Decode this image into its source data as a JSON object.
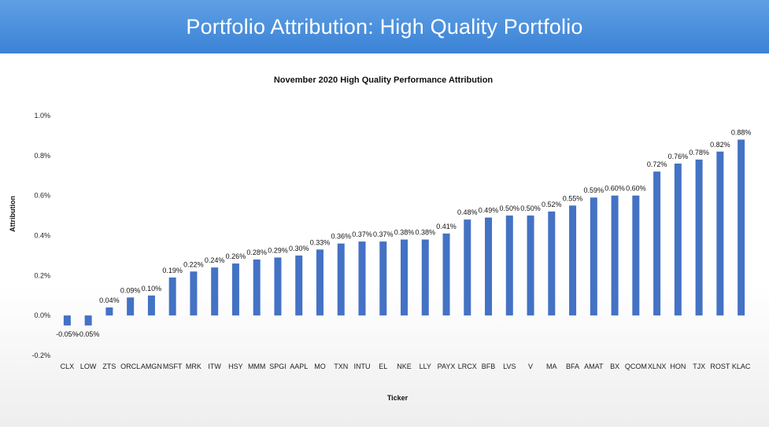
{
  "banner": {
    "title": "Portfolio Attribution: High Quality Portfolio"
  },
  "chart_data": {
    "type": "bar",
    "title": "November 2020 High Quality Performance Attribution",
    "xlabel": "Ticker",
    "ylabel": "Attribution",
    "ylim": [
      -0.2,
      1.0
    ],
    "yticks": [
      -0.2,
      0.0,
      0.2,
      0.4,
      0.6,
      0.8,
      1.0
    ],
    "ytick_labels": [
      "-0.2%",
      "0.0%",
      "0.2%",
      "0.4%",
      "0.6%",
      "0.8%",
      "1.0%"
    ],
    "grid": false,
    "legend": "none",
    "color": "#4472C4",
    "categories": [
      "CLX",
      "LOW",
      "ZTS",
      "ORCL",
      "AMGN",
      "MSFT",
      "MRK",
      "ITW",
      "HSY",
      "MMM",
      "SPGI",
      "AAPL",
      "MO",
      "TXN",
      "INTU",
      "EL",
      "NKE",
      "LLY",
      "PAYX",
      "LRCX",
      "BFB",
      "LVS",
      "V",
      "MA",
      "BFA",
      "AMAT",
      "BX",
      "QCOM",
      "XLNX",
      "HON",
      "TJX",
      "ROST",
      "KLAC"
    ],
    "values": [
      -0.05,
      -0.05,
      0.04,
      0.09,
      0.1,
      0.19,
      0.22,
      0.24,
      0.26,
      0.28,
      0.29,
      0.3,
      0.33,
      0.36,
      0.37,
      0.37,
      0.38,
      0.38,
      0.41,
      0.48,
      0.49,
      0.5,
      0.5,
      0.52,
      0.55,
      0.59,
      0.6,
      0.6,
      0.72,
      0.76,
      0.78,
      0.82,
      0.88
    ],
    "data_labels": [
      "-0.05%",
      "-0.05%",
      "0.04%",
      "0.09%",
      "0.10%",
      "0.19%",
      "0.22%",
      "0.24%",
      "0.26%",
      "0.28%",
      "0.29%",
      "0.30%",
      "0.33%",
      "0.36%",
      "0.37%",
      "0.37%",
      "0.38%",
      "0.38%",
      "0.41%",
      "0.48%",
      "0.49%",
      "0.50%",
      "0.50%",
      "0.52%",
      "0.55%",
      "0.59%",
      "0.60%",
      "0.60%",
      "0.72%",
      "0.76%",
      "0.78%",
      "0.82%",
      "0.88%"
    ]
  }
}
